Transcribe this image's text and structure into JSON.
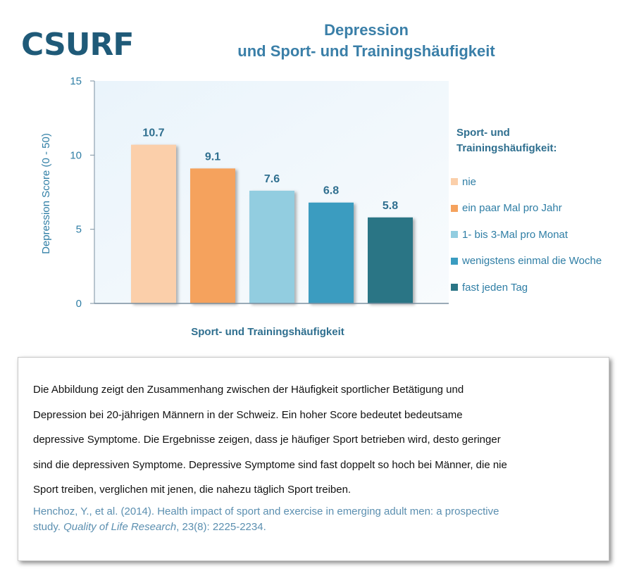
{
  "logo": {
    "text": "CSURF"
  },
  "header": {
    "title_line1": "Depression",
    "title_line2": "und Sport- und Trainingshäufigkeit"
  },
  "chart_data": {
    "type": "bar",
    "title": "Depression und Sport- und Trainingshäufigkeit",
    "categories": [
      "nie",
      "ein paar Mal pro Jahr",
      "1- bis 3-Mal pro Monat",
      "wenigstens einmal die Woche",
      "fast jeden Tag"
    ],
    "values": [
      10.7,
      9.1,
      7.6,
      6.8,
      5.8
    ],
    "data_labels": [
      "10.7",
      "9.1",
      "7.6",
      "6.8",
      "5.8"
    ],
    "colors": [
      "#fbcfaa",
      "#f5a25d",
      "#92cde0",
      "#3a9cc0",
      "#2b7585"
    ],
    "xlabel": "Sport- und Trainingshäufigkeit",
    "ylabel": "Depression Score  (0 - 50)",
    "ylim": [
      0,
      15
    ],
    "yticks": [
      "0",
      "5",
      "10",
      "15"
    ],
    "legend_title": "Sport- und Trainingshäufigkeit:",
    "legend_position": "right",
    "grid": false,
    "plot_background": "#f2f8fc"
  },
  "info": {
    "description_lines": [
      "Die Abbildung zeigt den Zusammenhang zwischen der Häufigkeit sportlicher Betätigung und",
      "Depression bei 20-jährigen Männern in der Schweiz.  Ein hoher Score bedeutet bedeutsame",
      "depressive Symptome. Die Ergebnisse zeigen, dass je häufiger Sport betrieben wird, desto geringer",
      "sind die depressiven Symptome. Depressive Symptome sind fast doppelt so hoch bei Männer, die nie",
      "Sport treiben, verglichen mit jenen, die nahezu täglich Sport treiben."
    ],
    "citation_line1": "Henchoz, Y., et al. (2014). Health impact of sport and exercise in emerging adult men: a prospective",
    "citation_line2_prefix": "study. ",
    "citation_journal": "Quality of Life Research",
    "citation_line2_suffix": ", 23(8): 2225-2234."
  }
}
